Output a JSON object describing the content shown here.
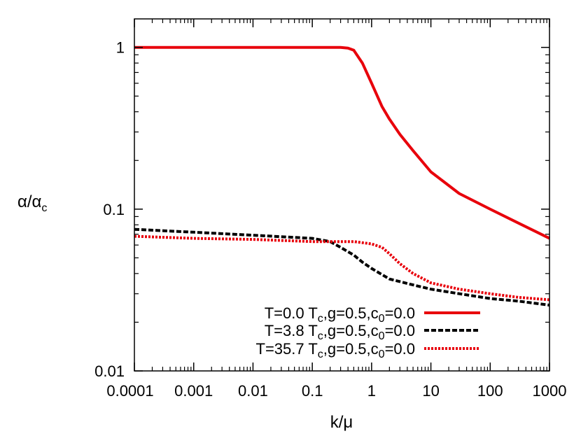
{
  "chart_data": {
    "type": "line",
    "xlabel": "k/μ",
    "ylabel": {
      "main": "α/α",
      "sub": "c"
    },
    "x_scale": "log",
    "y_scale": "log",
    "xlim": [
      0.0001,
      1000
    ],
    "ylim": [
      0.01,
      1.5
    ],
    "grid": false,
    "legend_position": "bottom-right",
    "x_ticks": [
      {
        "value": 0.0001,
        "label": "0.0001"
      },
      {
        "value": 0.001,
        "label": "0.001"
      },
      {
        "value": 0.01,
        "label": "0.01"
      },
      {
        "value": 0.1,
        "label": "0.1"
      },
      {
        "value": 1,
        "label": "1"
      },
      {
        "value": 10,
        "label": "10"
      },
      {
        "value": 100,
        "label": "100"
      },
      {
        "value": 1000,
        "label": "1000"
      }
    ],
    "y_ticks": [
      {
        "value": 0.01,
        "label": "0.01"
      },
      {
        "value": 0.1,
        "label": "0.1"
      },
      {
        "value": 1,
        "label": "1"
      }
    ],
    "series": [
      {
        "name_parts": [
          "T=0.0 T",
          "c",
          ",g=0.5,c",
          "0",
          "=0.0"
        ],
        "color": "#e8000b",
        "dash": "solid",
        "x": [
          0.0001,
          0.001,
          0.01,
          0.1,
          0.2,
          0.3,
          0.4,
          0.5,
          0.7,
          1,
          1.5,
          2,
          3,
          5,
          10,
          30,
          100,
          300,
          1000
        ],
        "y": [
          1.0,
          1.0,
          1.0,
          1.0,
          1.0,
          1.0,
          0.99,
          0.96,
          0.8,
          0.6,
          0.43,
          0.36,
          0.29,
          0.23,
          0.17,
          0.125,
          0.1,
          0.082,
          0.066
        ]
      },
      {
        "name_parts": [
          "T=3.8 T",
          "c",
          ",g=0.5,c",
          "0",
          "=0.0"
        ],
        "color": "#000000",
        "dash": "dashed",
        "x": [
          0.0001,
          0.001,
          0.01,
          0.1,
          0.2,
          0.3,
          0.5,
          0.7,
          1,
          2,
          5,
          10,
          30,
          100,
          300,
          1000
        ],
        "y": [
          0.075,
          0.072,
          0.069,
          0.066,
          0.063,
          0.058,
          0.052,
          0.047,
          0.043,
          0.037,
          0.034,
          0.032,
          0.03,
          0.028,
          0.027,
          0.0255
        ]
      },
      {
        "name_parts": [
          "T=35.7 T",
          "c",
          ",g=0.5,c",
          "0",
          "=0.0"
        ],
        "color": "#e8000b",
        "dash": "dotted",
        "x": [
          0.0001,
          0.001,
          0.01,
          0.1,
          0.5,
          1,
          1.5,
          2,
          3,
          5,
          10,
          30,
          100,
          300,
          1000
        ],
        "y": [
          0.068,
          0.066,
          0.065,
          0.063,
          0.063,
          0.061,
          0.058,
          0.053,
          0.046,
          0.04,
          0.035,
          0.032,
          0.03,
          0.0285,
          0.0275
        ]
      }
    ]
  }
}
